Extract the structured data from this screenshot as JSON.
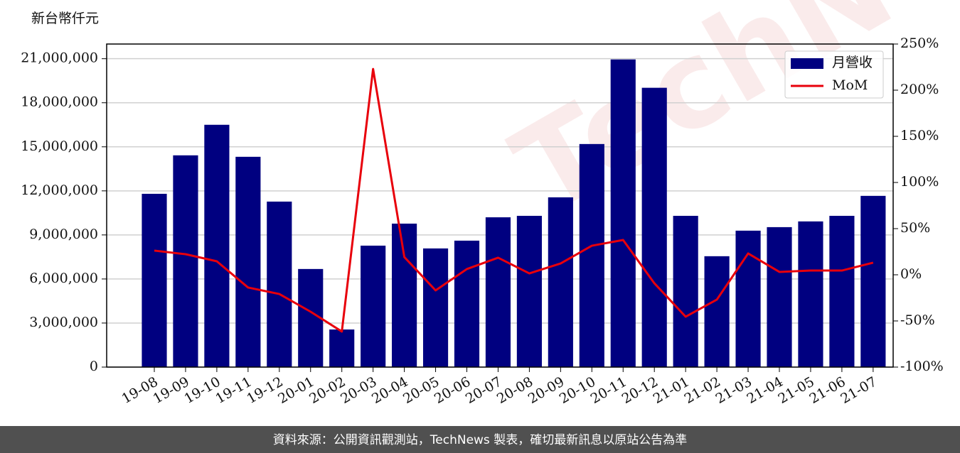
{
  "chart_data": {
    "type": "bar",
    "y_label": "新台幣仟元",
    "watermark": "TechNews",
    "footer": "資料來源：公開資訊觀測站，TechNews 製表，確切最新訊息以原站公告為準",
    "categories": [
      "19-08",
      "19-09",
      "19-10",
      "19-11",
      "19-12",
      "20-01",
      "20-02",
      "20-03",
      "20-04",
      "20-05",
      "20-06",
      "20-07",
      "20-08",
      "20-09",
      "20-10",
      "20-11",
      "20-12",
      "21-01",
      "21-02",
      "21-03",
      "21-04",
      "21-05",
      "21-06",
      "21-07"
    ],
    "series": [
      {
        "name": "月營收",
        "type": "bar",
        "color": "#000080",
        "axis": "y",
        "values": [
          11800000,
          14420000,
          16500000,
          14320000,
          11270000,
          6680000,
          2560000,
          8270000,
          9770000,
          8080000,
          8610000,
          10200000,
          10300000,
          11560000,
          15190000,
          20950000,
          19020000,
          10300000,
          7550000,
          9290000,
          9530000,
          9920000,
          10300000,
          11660000
        ]
      },
      {
        "name": "MoM",
        "type": "line",
        "color": "#e8000b",
        "axis": "y2",
        "values": [
          26.2,
          22.3,
          14.6,
          -13.8,
          -20.8,
          -40,
          -61.5,
          223,
          19.2,
          -16.9,
          6.2,
          18.5,
          1.5,
          12.3,
          31.5,
          37.7,
          -9.2,
          -45.4,
          -26.9,
          23.1,
          3.1,
          4.6,
          4.6,
          13.1
        ]
      }
    ],
    "ylim": [
      0,
      22000000
    ],
    "yticks": [
      0,
      {
        "value": 3000000,
        "label": "3,000,000"
      },
      {
        "value": 6000000,
        "label": "6,000,000"
      },
      {
        "value": 9000000,
        "label": "9,000,000"
      },
      {
        "value": 12000000,
        "label": "12,000,000"
      },
      {
        "value": 15000000,
        "label": "15,000,000"
      },
      {
        "value": 18000000,
        "label": "18,000,000"
      },
      {
        "value": 21000000,
        "label": "21,000,000"
      }
    ],
    "y2lim": [
      -100,
      250
    ],
    "y2ticks": [
      {
        "value": -100,
        "label": "-100%"
      },
      {
        "value": -50,
        "label": "-50%"
      },
      {
        "value": 0,
        "label": "0%"
      },
      {
        "value": 50,
        "label": "50%"
      },
      {
        "value": 100,
        "label": "100%"
      },
      {
        "value": 150,
        "label": "150%"
      },
      {
        "value": 200,
        "label": "200%"
      },
      {
        "value": 250,
        "label": "250%"
      }
    ],
    "grid": true,
    "legend": "upper right"
  }
}
